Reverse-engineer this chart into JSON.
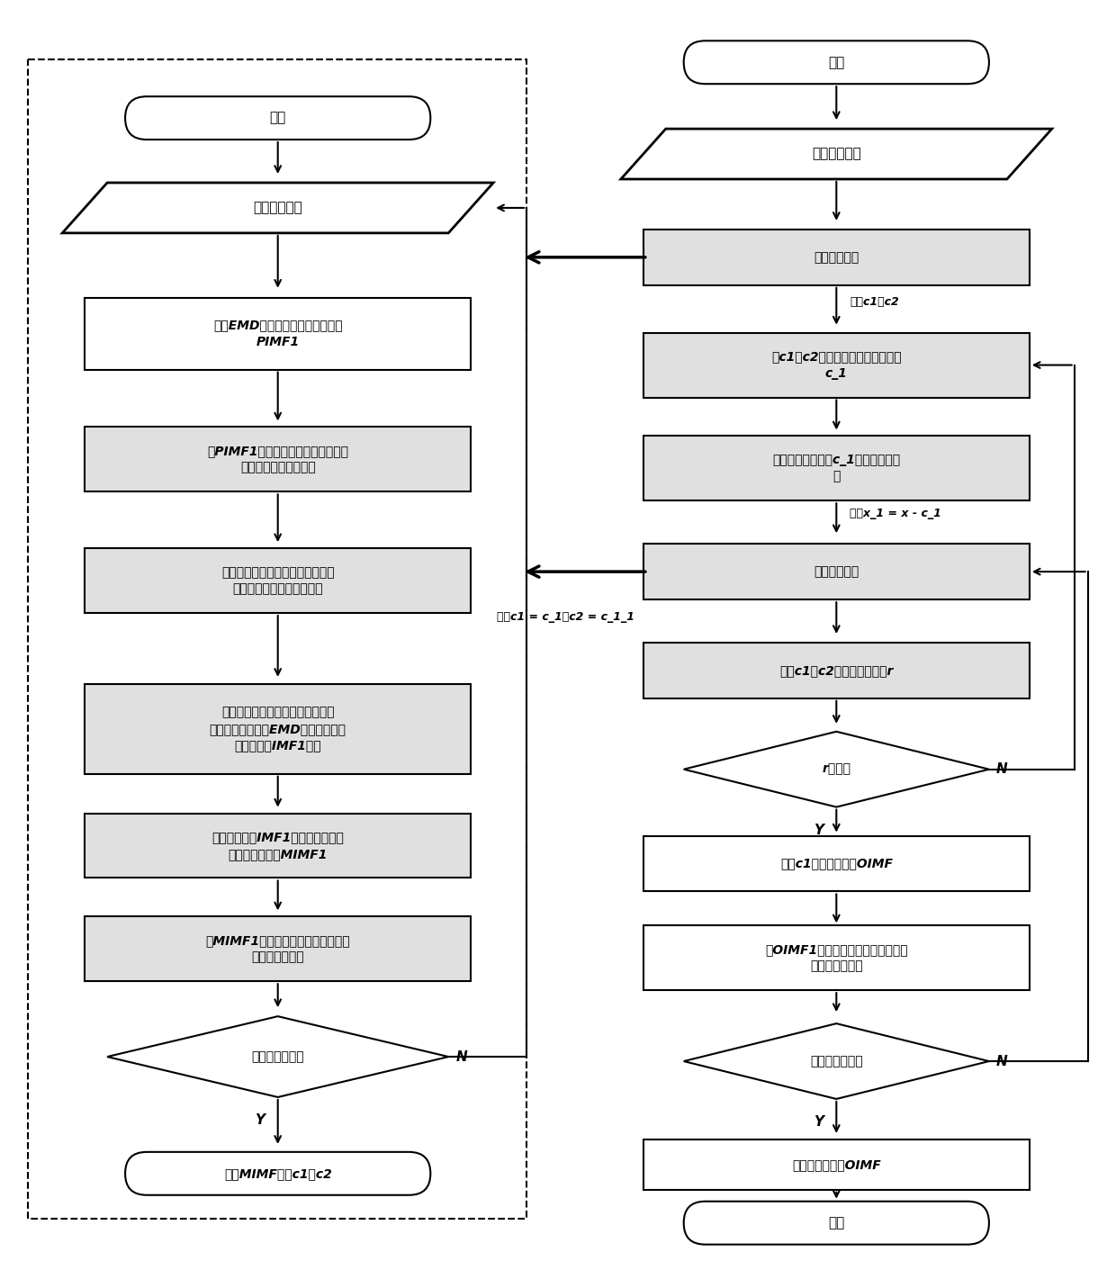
{
  "fig_width": 12.4,
  "fig_height": 14.01,
  "bg_color": "#ffffff",
  "gray_fill": "#e0e0e0",
  "left_flow": {
    "start_label": "开始",
    "input_label": "输入初始信号",
    "b1": "利用EMD对初始信号进行分解得到\nPIMF1",
    "b2": "对PIMF1进行希尔伯特变换，计算出\n其瞬时频率与瞬时幅值",
    "b3": "利用瞬时频率与瞬时幅值求得掩蔽\n信号的频率，构造掩蔽信号",
    "b4": "从初始信号中添加掩蔽信号，得到\n新的信号，再利用EMD对新信号进行\n分解，得到IMF1分量",
    "b5": "将掩蔽信号从IMF1中去除，得到去\n除掩蔽信号分量MIMF1",
    "b6": "将MIMF1从初始信号中去除，得到下\n一个分解的信号",
    "diamond": "残余分量收敛？",
    "end_label": "输出MIMF分量c1和c2"
  },
  "right_flow": {
    "start_label": "开始",
    "input_label": "输入初始信号",
    "mask1": "掩蔽信号处理",
    "annot1": "输出c1与c2",
    "corr": "对c1和c2进行相关系数处理，得到\nc_1",
    "remove1": "从初始信号中去除c_1，得到新的信\n号",
    "annot2": "输入x_1 = x - c_1",
    "mask2": "掩蔽信号处理",
    "annot3": "输出c1 = c_1与c2 = c_1_1",
    "calc": "计算c1和c2之间的相关系数r",
    "diamond1": "r＜阈值",
    "confirm": "确定c1为第一个最优OIMF",
    "remove2": "将OIMF1从初始信号中去除，得到下\n一个分解的信号",
    "diamond2": "残余分量收敛？",
    "result": "得到若干个最优OIMF",
    "end_label": "结束"
  }
}
